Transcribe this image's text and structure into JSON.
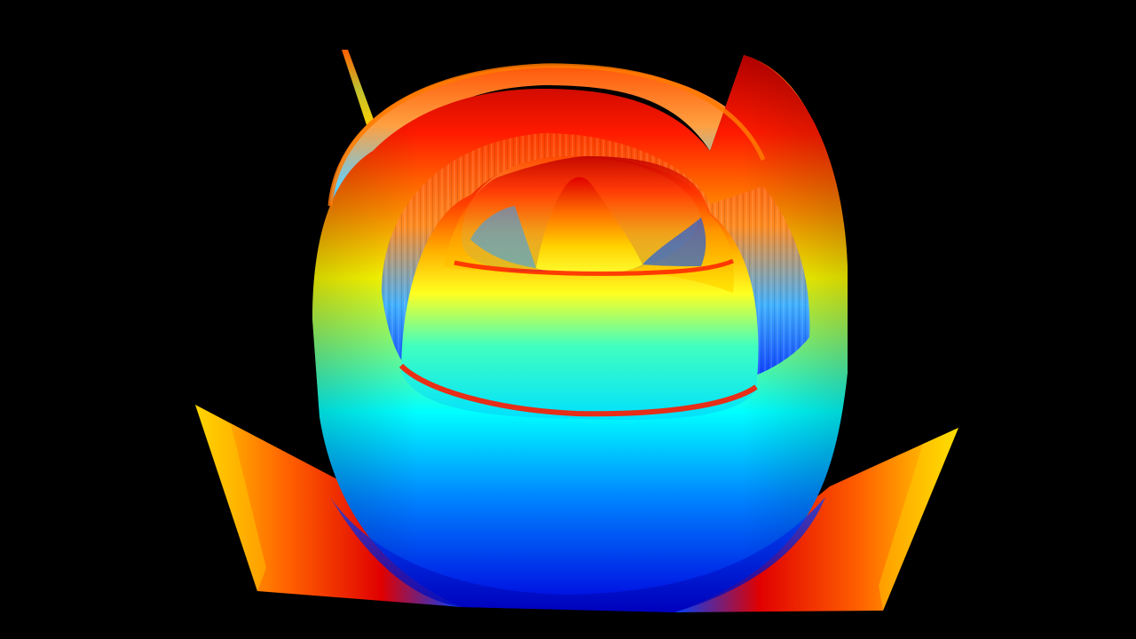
{
  "scene": {
    "subject": "3d-surface-render",
    "background_color": "#000000",
    "colormap": "jet",
    "colormap_stops": [
      "#00007f",
      "#0000ff",
      "#007fff",
      "#00ffff",
      "#7fff7f",
      "#ffff00",
      "#ff7f00",
      "#ff0000",
      "#7f0000"
    ],
    "shading": "gradient",
    "ring_count": 3,
    "has_central_peak": true,
    "has_corner_sheets": true
  }
}
